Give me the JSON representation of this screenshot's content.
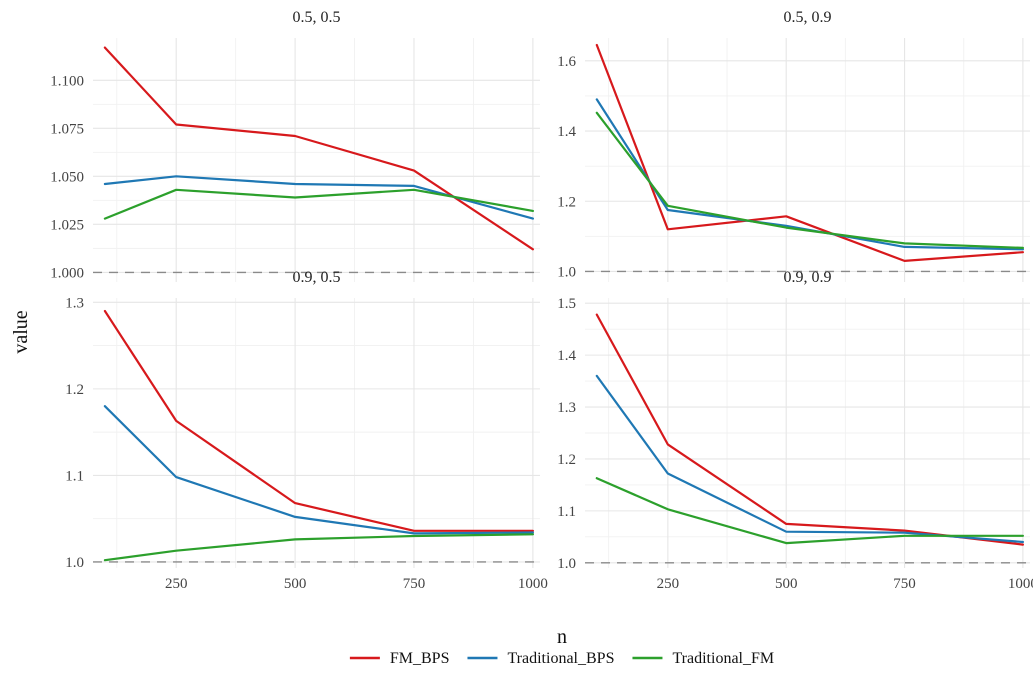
{
  "chart_data": {
    "type": "line",
    "xlabel": "n",
    "ylabel": "value",
    "legend_position": "bottom",
    "grid": true,
    "reference_line": 1.0,
    "colors": {
      "FM_BPS": "#d7191c",
      "Traditional_BPS": "#1f78b4",
      "Traditional_FM": "#2ca02c"
    },
    "legend": [
      "FM_BPS",
      "Traditional_BPS",
      "Traditional_FM"
    ],
    "facets": [
      {
        "title": "0.5, 0.5",
        "x": [
          100,
          250,
          500,
          750,
          1000
        ],
        "xlim": [
          75,
          1015
        ],
        "xticks": [
          250,
          500,
          750,
          1000
        ],
        "ylim": [
          0.995,
          1.122
        ],
        "yticks": [
          1.0,
          1.025,
          1.05,
          1.075,
          1.1
        ],
        "ytick_labels": [
          "1.000",
          "1.025",
          "1.050",
          "1.075",
          "1.100"
        ],
        "series": [
          {
            "name": "FM_BPS",
            "values": [
              1.117,
              1.077,
              1.071,
              1.053,
              1.012
            ]
          },
          {
            "name": "Traditional_BPS",
            "values": [
              1.046,
              1.05,
              1.046,
              1.045,
              1.028
            ]
          },
          {
            "name": "Traditional_FM",
            "values": [
              1.028,
              1.043,
              1.039,
              1.043,
              1.032
            ]
          }
        ]
      },
      {
        "title": "0.5, 0.9",
        "x": [
          100,
          250,
          500,
          750,
          1000
        ],
        "xlim": [
          75,
          1015
        ],
        "xticks": [
          250,
          500,
          750,
          1000
        ],
        "ylim": [
          0.97,
          1.665
        ],
        "yticks": [
          1.0,
          1.2,
          1.4,
          1.6
        ],
        "ytick_labels": [
          "1.0",
          "1.2",
          "1.4",
          "1.6"
        ],
        "series": [
          {
            "name": "FM_BPS",
            "values": [
              1.645,
              1.12,
              1.157,
              1.03,
              1.055
            ]
          },
          {
            "name": "Traditional_BPS",
            "values": [
              1.49,
              1.175,
              1.13,
              1.07,
              1.063
            ]
          },
          {
            "name": "Traditional_FM",
            "values": [
              1.452,
              1.187,
              1.125,
              1.08,
              1.067
            ]
          }
        ]
      },
      {
        "title": "0.9, 0.5",
        "x": [
          100,
          250,
          500,
          750,
          1000
        ],
        "xlim": [
          75,
          1015
        ],
        "xticks": [
          250,
          500,
          750,
          1000
        ],
        "ylim": [
          0.993,
          1.305
        ],
        "yticks": [
          1.0,
          1.1,
          1.2,
          1.3
        ],
        "ytick_labels": [
          "1.0",
          "1.1",
          "1.2",
          "1.3"
        ],
        "series": [
          {
            "name": "FM_BPS",
            "values": [
              1.29,
              1.163,
              1.068,
              1.036,
              1.036
            ]
          },
          {
            "name": "Traditional_BPS",
            "values": [
              1.18,
              1.098,
              1.052,
              1.033,
              1.034
            ]
          },
          {
            "name": "Traditional_FM",
            "values": [
              1.002,
              1.013,
              1.026,
              1.03,
              1.032
            ]
          }
        ]
      },
      {
        "title": "0.9, 0.9",
        "x": [
          100,
          250,
          500,
          750,
          1000
        ],
        "xlim": [
          75,
          1015
        ],
        "xticks": [
          250,
          500,
          750,
          1000
        ],
        "ylim": [
          0.99,
          1.51
        ],
        "yticks": [
          1.0,
          1.1,
          1.2,
          1.3,
          1.4,
          1.5
        ],
        "ytick_labels": [
          "1.0",
          "1.1",
          "1.2",
          "1.3",
          "1.4",
          "1.5"
        ],
        "series": [
          {
            "name": "FM_BPS",
            "values": [
              1.478,
              1.228,
              1.075,
              1.062,
              1.035
            ]
          },
          {
            "name": "Traditional_BPS",
            "values": [
              1.36,
              1.172,
              1.06,
              1.058,
              1.04
            ]
          },
          {
            "name": "Traditional_FM",
            "values": [
              1.163,
              1.103,
              1.038,
              1.052,
              1.052
            ]
          }
        ]
      }
    ]
  }
}
